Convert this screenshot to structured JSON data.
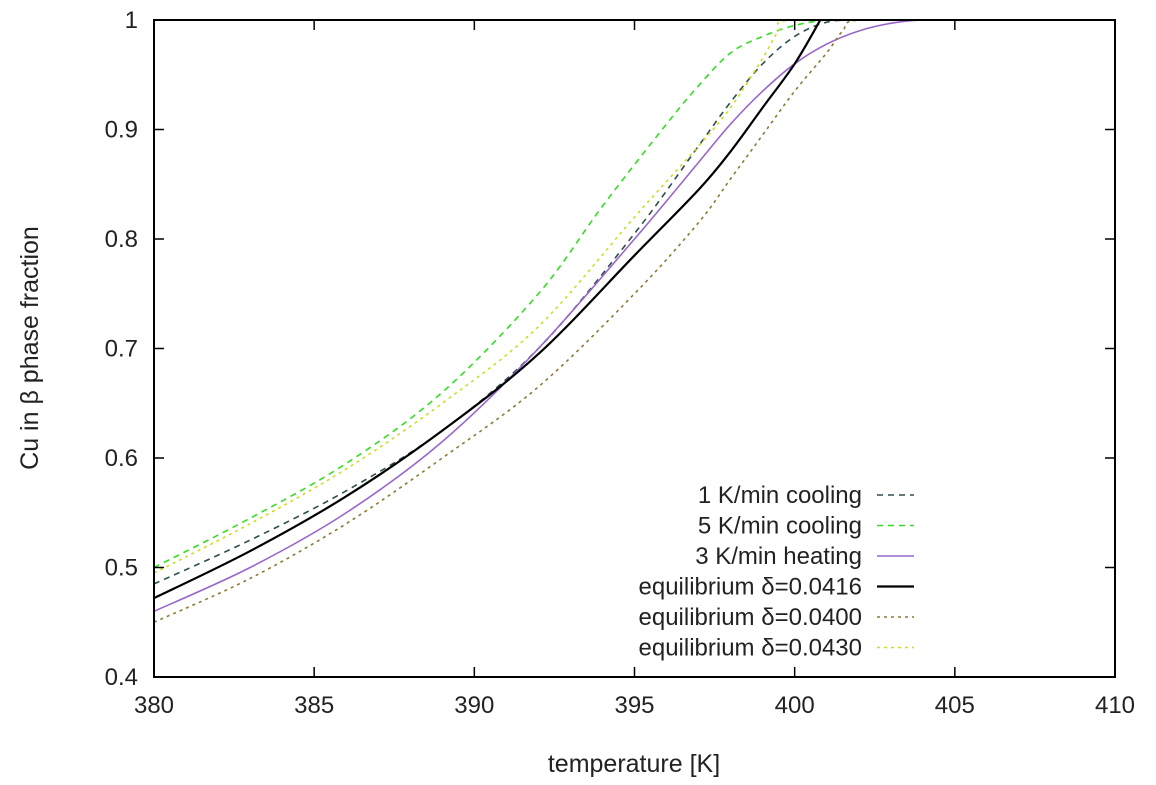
{
  "chart_data": {
    "type": "line",
    "title": "",
    "xlabel": "temperature [K]",
    "ylabel": "Cu in β phase fraction",
    "xlim": [
      380,
      410
    ],
    "ylim": [
      0.4,
      1.0
    ],
    "xticks": [
      "380",
      "385",
      "390",
      "395",
      "400",
      "405",
      "410"
    ],
    "yticks": [
      "0.4",
      "0.5",
      "0.6",
      "0.7",
      "0.8",
      "0.9",
      "1"
    ],
    "grid": false,
    "legend_position": "bottom-right",
    "series": [
      {
        "name": "1 K/min cooling",
        "color": "#2f4f4f",
        "dash": "dashed",
        "x": [
          380,
          383,
          386,
          389,
          392,
          395,
          397,
          398,
          399,
          400,
          401,
          402,
          403,
          404,
          405,
          410
        ],
        "y": [
          0.485,
          0.525,
          0.57,
          0.625,
          0.7,
          0.805,
          0.885,
          0.925,
          0.96,
          0.985,
          0.998,
          1.0,
          1.0,
          1.0,
          1.0,
          1.0
        ]
      },
      {
        "name": "5 K/min cooling",
        "color": "#33dd22",
        "dash": "dashed",
        "x": [
          380,
          383,
          386,
          389,
          392,
          394,
          396,
          397,
          398,
          399,
          400,
          401,
          402,
          405,
          410
        ],
        "y": [
          0.5,
          0.545,
          0.595,
          0.66,
          0.75,
          0.83,
          0.905,
          0.94,
          0.97,
          0.985,
          0.995,
          1.0,
          1.0,
          1.0,
          1.0
        ]
      },
      {
        "name": "3 K/min heating",
        "color": "#9966cc",
        "dash": "solid",
        "x": [
          380,
          383,
          386,
          389,
          392,
          395,
          397,
          398,
          399,
          400,
          401,
          402,
          403,
          404,
          405,
          410
        ],
        "y": [
          0.46,
          0.5,
          0.55,
          0.615,
          0.7,
          0.8,
          0.87,
          0.905,
          0.935,
          0.96,
          0.978,
          0.99,
          0.997,
          1.0,
          1.0,
          1.0
        ]
      },
      {
        "name": "equilibrium δ=0.0416",
        "color": "#000000",
        "dash": "solid",
        "x": [
          380,
          383,
          386,
          389,
          392,
          395,
          397,
          398,
          399,
          400,
          400.8
        ],
        "y": [
          0.472,
          0.515,
          0.565,
          0.625,
          0.695,
          0.785,
          0.845,
          0.88,
          0.92,
          0.96,
          1.0
        ]
      },
      {
        "name": "equilibrium δ=0.0400",
        "color": "#8b7a33",
        "dash": "dotted",
        "x": [
          380,
          383,
          386,
          389,
          392,
          395,
          397,
          398,
          399,
          400,
          401,
          401.5,
          402,
          405,
          410
        ],
        "y": [
          0.45,
          0.49,
          0.54,
          0.6,
          0.665,
          0.75,
          0.815,
          0.855,
          0.895,
          0.935,
          0.97,
          0.99,
          1.0,
          1.0,
          1.0
        ]
      },
      {
        "name": "equilibrium δ=0.0430",
        "color": "#ccdd22",
        "dash": "dotted",
        "x": [
          380,
          383,
          386,
          389,
          392,
          395,
          397,
          398,
          399,
          399.5,
          400,
          405,
          410
        ],
        "y": [
          0.495,
          0.54,
          0.59,
          0.65,
          0.72,
          0.82,
          0.885,
          0.92,
          0.965,
          0.99,
          1.0,
          1.0,
          1.0
        ]
      }
    ]
  }
}
